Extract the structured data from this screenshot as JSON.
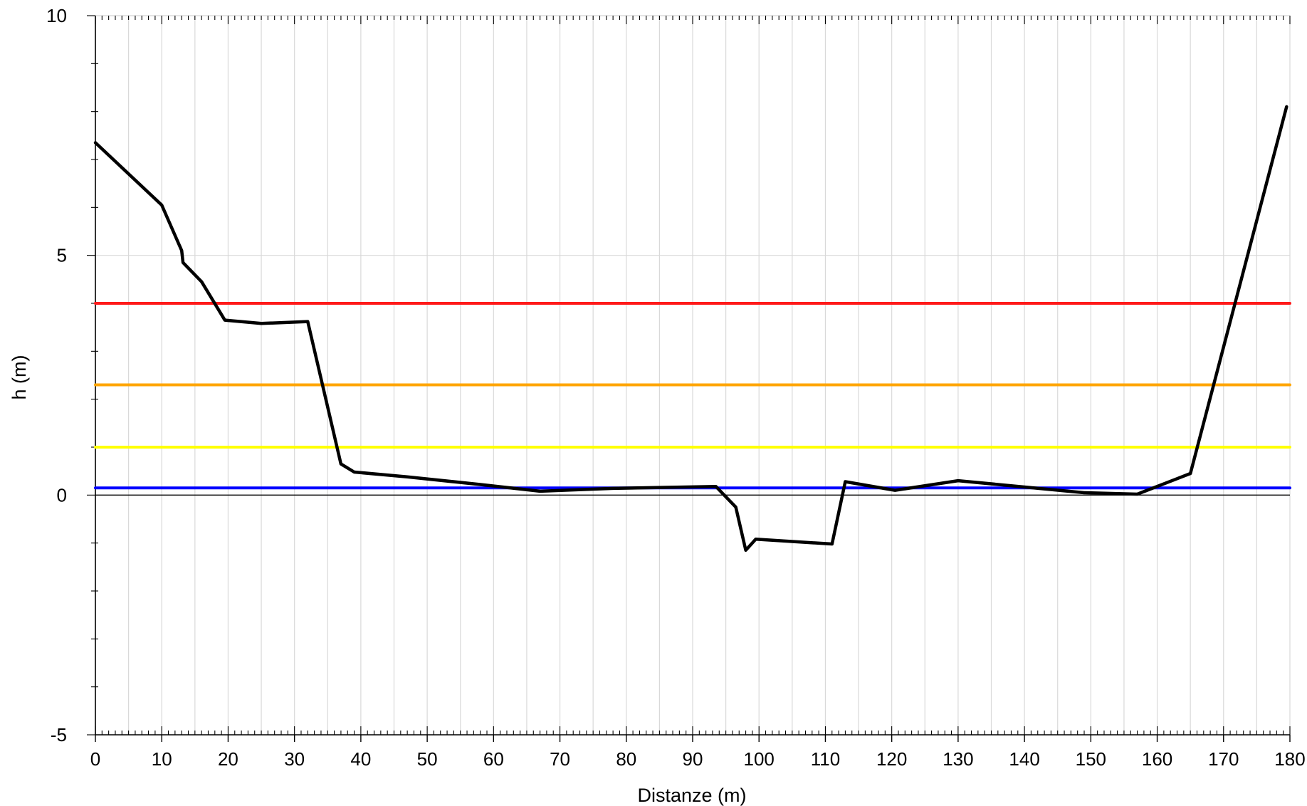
{
  "chart_data": {
    "type": "line",
    "title": "",
    "xlabel": "Distanze (m)",
    "ylabel": "h (m)",
    "xlim": [
      0,
      180
    ],
    "ylim": [
      -5,
      10
    ],
    "x_ticks": [
      0,
      10,
      20,
      30,
      40,
      50,
      60,
      70,
      80,
      90,
      100,
      110,
      120,
      130,
      140,
      150,
      160,
      170,
      180
    ],
    "x_tick_labels": [
      "0",
      "10",
      "20",
      "30",
      "40",
      "50",
      "60",
      "70",
      "80",
      "90",
      "100",
      "110",
      "120",
      "130",
      "140",
      "150",
      "160",
      "170",
      "180"
    ],
    "y_ticks": [
      -5,
      0,
      5,
      10
    ],
    "y_tick_labels": [
      "-5",
      "0",
      "5",
      "10"
    ],
    "x_minor_step": 1,
    "y_minor_step": 1,
    "vertical_grid_step": 5,
    "grid": true,
    "colors": {
      "grid": "#d9d9d9",
      "axis": "#000000",
      "zero_line": "#000000"
    },
    "series": [
      {
        "color": "#ff1a1a",
        "kind": "hline",
        "values": [
          4.0,
          4.0
        ],
        "x": [
          0,
          180
        ]
      },
      {
        "color": "#ffa500",
        "kind": "hline",
        "values": [
          2.3,
          2.3
        ],
        "x": [
          0,
          180
        ]
      },
      {
        "color": "#ffff00",
        "kind": "hline",
        "values": [
          1.0,
          1.0
        ],
        "x": [
          0,
          180
        ]
      },
      {
        "color": "#0000ff",
        "kind": "hline",
        "values": [
          0.15,
          0.15
        ],
        "x": [
          0,
          180
        ]
      },
      {
        "color": "#000000",
        "kind": "profile",
        "x": [
          0,
          10,
          13,
          13.2,
          16,
          19.5,
          25,
          32,
          37,
          39,
          47,
          58,
          67,
          78,
          93.5,
          96.5,
          98,
          99.5,
          111,
          113,
          120.5,
          130,
          149,
          157,
          165,
          179.5
        ],
        "values": [
          7.35,
          6.05,
          5.1,
          4.85,
          4.45,
          3.65,
          3.58,
          3.62,
          0.65,
          0.48,
          0.38,
          0.22,
          0.08,
          0.14,
          0.18,
          -0.25,
          -1.15,
          -0.92,
          -1.02,
          0.28,
          0.1,
          0.3,
          0.05,
          0.02,
          0.45,
          8.1
        ]
      }
    ]
  }
}
